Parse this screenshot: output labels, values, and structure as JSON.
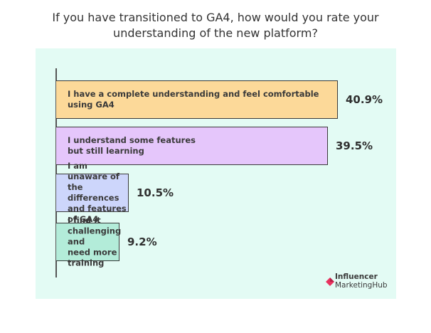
{
  "chart_data": {
    "type": "bar",
    "orientation": "horizontal",
    "title_lines": [
      "If you have transitioned to GA4, how would you rate your",
      "understanding of the new platform?"
    ],
    "categories": [
      "I have a complete understanding and feel comfortable\nusing GA4",
      "I understand some features\nbut still learning",
      "I am unaware of the differences\nand features of GA4",
      "I find it challenging and\nneed more training"
    ],
    "values": [
      40.9,
      39.5,
      10.5,
      9.2
    ],
    "value_labels": [
      "40.9%",
      "39.5%",
      "10.5%",
      "9.2%"
    ],
    "colors": [
      "#fcd999",
      "#e5c6fb",
      "#cdd6fb",
      "#b3ecd9"
    ],
    "xlim": [
      0,
      40.9
    ],
    "grid": false,
    "legend": "none"
  },
  "brand": {
    "line1": "Influencer",
    "line2": "MarketingHub",
    "accent": "#e8335f"
  }
}
